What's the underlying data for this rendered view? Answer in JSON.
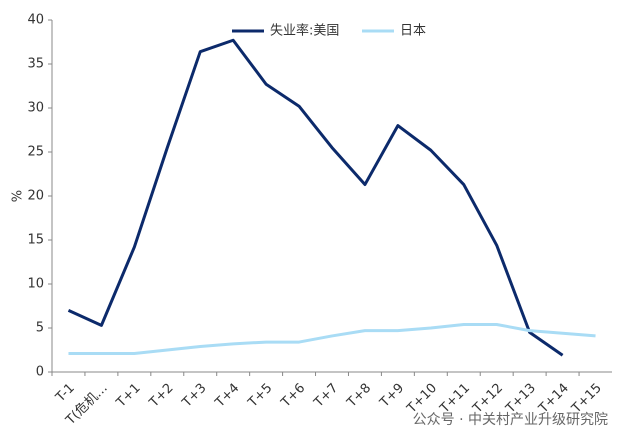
{
  "chart_data": {
    "type": "line",
    "ylabel": "%",
    "categories": [
      "T-1",
      "T(危机…",
      "T+1",
      "T+2",
      "T+3",
      "T+4",
      "T+5",
      "T+6",
      "T+7",
      "T+8",
      "T+9",
      "T+10",
      "T+11",
      "T+12",
      "T+13",
      "T+14",
      "T+15"
    ],
    "series": [
      {
        "name": "失业率:美国",
        "color": "#0c2a6b",
        "values": [
          7,
          5.3,
          14.2,
          25.5,
          36.4,
          37.7,
          32.7,
          30.2,
          25.5,
          21.3,
          28,
          25.2,
          21.3,
          14.4,
          4.5,
          1.9,
          null
        ]
      },
      {
        "name": "日本",
        "color": "#a9dcf5",
        "values": [
          2.1,
          2.1,
          2.1,
          2.5,
          2.9,
          3.2,
          3.4,
          3.4,
          4.1,
          4.7,
          4.7,
          5.0,
          5.4,
          5.4,
          4.7,
          4.4,
          4.1
        ]
      }
    ],
    "ylim": [
      0,
      40
    ],
    "yticks": [
      0,
      5,
      10,
      15,
      20,
      25,
      30,
      35,
      40
    ],
    "watermark": "公众号 · 中关村产业升级研究院"
  }
}
